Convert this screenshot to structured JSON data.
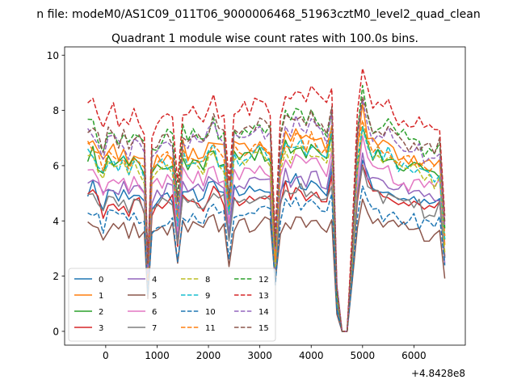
{
  "figure": {
    "suptitle": "n file: modeM0/AS1C09_011T06_9000006468_51963cztM0_level2_quad_clean",
    "offset_text": "+4.8428e8"
  },
  "chart_data": {
    "type": "line",
    "title": "Quadrant 1 module wise count rates with 100.0s bins.",
    "xlabel": "",
    "ylabel": "",
    "xlim": [
      -800,
      7000
    ],
    "ylim": [
      -0.5,
      10.3
    ],
    "x_ticks": [
      0,
      1000,
      2000,
      3000,
      4000,
      5000,
      6000
    ],
    "y_ticks": [
      0,
      2,
      4,
      6,
      8,
      10
    ],
    "x_offset": 484280000,
    "grid": false,
    "legend_position": "lower-left",
    "legend_columns": 4,
    "colors": [
      "#1f77b4",
      "#ff7f0e",
      "#2ca02c",
      "#d62728",
      "#9467bd",
      "#8c564b",
      "#e377c2",
      "#7f7f7f",
      "#bcbd22",
      "#17becf"
    ],
    "x": [
      -350,
      -250,
      -150,
      -50,
      50,
      150,
      250,
      350,
      450,
      550,
      650,
      750,
      820,
      900,
      1000,
      1100,
      1200,
      1300,
      1400,
      1500,
      1600,
      1700,
      1800,
      1900,
      2000,
      2100,
      2200,
      2300,
      2400,
      2500,
      2600,
      2700,
      2800,
      2900,
      3000,
      3100,
      3200,
      3300,
      3400,
      3500,
      3600,
      3700,
      3800,
      3900,
      4000,
      4100,
      4200,
      4300,
      4400,
      4500,
      4600,
      4700,
      4800,
      4900,
      5000,
      5100,
      5200,
      5300,
      5400,
      5500,
      5600,
      5700,
      5800,
      5900,
      6000,
      6100,
      6200,
      6300,
      6400,
      6500,
      6600
    ],
    "series": [
      {
        "name": "0",
        "dash": "solid"
      },
      {
        "name": "1",
        "dash": "solid"
      },
      {
        "name": "2",
        "dash": "solid"
      },
      {
        "name": "3",
        "dash": "solid"
      },
      {
        "name": "4",
        "dash": "solid"
      },
      {
        "name": "5",
        "dash": "solid"
      },
      {
        "name": "6",
        "dash": "solid"
      },
      {
        "name": "7",
        "dash": "solid"
      },
      {
        "name": "8",
        "dash": "dashed"
      },
      {
        "name": "9",
        "dash": "dashed"
      },
      {
        "name": "10",
        "dash": "dashed"
      },
      {
        "name": "11",
        "dash": "dashed"
      },
      {
        "name": "12",
        "dash": "dashed"
      },
      {
        "name": "13",
        "dash": "dashed"
      },
      {
        "name": "14",
        "dash": "dashed"
      },
      {
        "name": "15",
        "dash": "dashed"
      }
    ],
    "base": [
      6.0,
      6.1,
      5.7,
      5.3,
      5.8,
      5.9,
      5.6,
      5.8,
      5.4,
      5.7,
      5.6,
      5.4,
      1.9,
      5.3,
      5.5,
      5.6,
      5.7,
      5.7,
      3.8,
      5.9,
      5.6,
      5.8,
      5.7,
      5.6,
      6.0,
      6.2,
      5.8,
      5.8,
      3.9,
      5.9,
      5.8,
      5.9,
      5.9,
      6.0,
      6.2,
      6.0,
      5.9,
      2.4,
      5.6,
      6.3,
      6.1,
      6.4,
      6.3,
      6.1,
      6.3,
      6.2,
      6.0,
      5.9,
      6.6,
      1.3,
      0.0,
      0.0,
      2.7,
      5.8,
      7.1,
      6.4,
      6.0,
      6.1,
      5.9,
      6.0,
      5.8,
      5.6,
      5.7,
      5.5,
      5.6,
      5.5,
      5.3,
      5.4,
      5.2,
      5.5,
      3.0
    ],
    "scales": [
      0.86,
      1.13,
      1.06,
      0.82,
      0.9,
      0.65,
      0.97,
      0.82,
      1.04,
      1.07,
      0.72,
      1.11,
      1.24,
      1.37,
      1.19,
      1.23
    ],
    "noise_seed": 7
  }
}
